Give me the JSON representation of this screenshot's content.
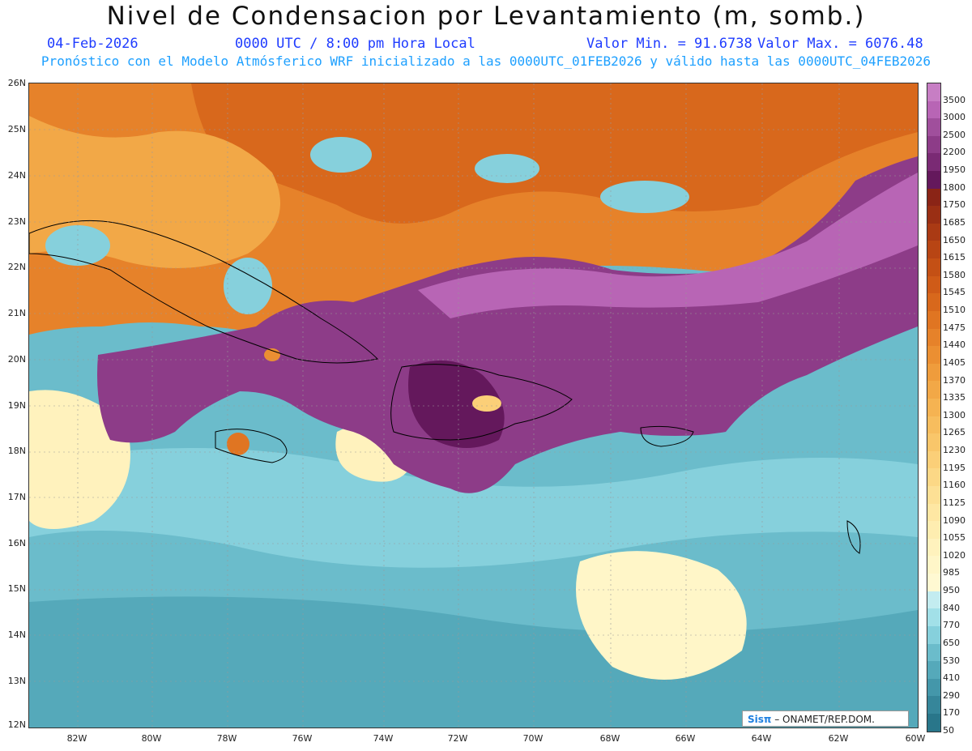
{
  "header": {
    "title": "Nivel de Condensacion por Levantamiento (m, somb.)",
    "date": "04-Feb-2026",
    "time": "0000 UTC / 8:00 pm Hora Local",
    "vmin": "Valor Min. = 91.6738",
    "vmax": "Valor Max. = 6076.48",
    "forecast": "Pronóstico con el Modelo Atmósferico WRF inicializado a las 0000UTC_01FEB2026 y válido hasta las  0000UTC_04FEB2026"
  },
  "axes": {
    "lat_labels": [
      "26N",
      "25N",
      "24N",
      "23N",
      "22N",
      "21N",
      "20N",
      "19N",
      "18N",
      "17N",
      "16N",
      "15N",
      "14N",
      "13N",
      "12N"
    ],
    "lon_labels": [
      "82W",
      "80W",
      "78W",
      "76W",
      "74W",
      "72W",
      "70W",
      "68W",
      "66W",
      "64W",
      "62W",
      "60W"
    ]
  },
  "colorbar": {
    "levels": [
      "3500",
      "3000",
      "2500",
      "2200",
      "1950",
      "1800",
      "1750",
      "1685",
      "1650",
      "1615",
      "1580",
      "1545",
      "1510",
      "1475",
      "1440",
      "1405",
      "1370",
      "1335",
      "1300",
      "1265",
      "1230",
      "1195",
      "1160",
      "1125",
      "1090",
      "1055",
      "1020",
      "985",
      "950",
      "840",
      "770",
      "650",
      "530",
      "410",
      "290",
      "170",
      "50"
    ],
    "colors": [
      "#c77ec4",
      "#b865b5",
      "#a04f9c",
      "#8d3c88",
      "#7a2a74",
      "#64185c",
      "#8a2416",
      "#9a2f14",
      "#aa3a14",
      "#b84514",
      "#c45015",
      "#cf5b18",
      "#d8681c",
      "#e07522",
      "#e6822a",
      "#eb8f32",
      "#ef9c3c",
      "#f2a847",
      "#f5b352",
      "#f7bd5e",
      "#f9c66a",
      "#fbcf78",
      "#fcd886",
      "#fde095",
      "#fee7a3",
      "#feedb0",
      "#fff2bd",
      "#fff6c8",
      "#fff9d2",
      "#c3ecf0",
      "#a2e0e8",
      "#86d0dc",
      "#6bbccb",
      "#55a9ba",
      "#4497aa",
      "#36869a",
      "#29768a"
    ]
  },
  "credit": {
    "logo": "Sisπ",
    "text": "– ONAMET/REP.DOM."
  }
}
